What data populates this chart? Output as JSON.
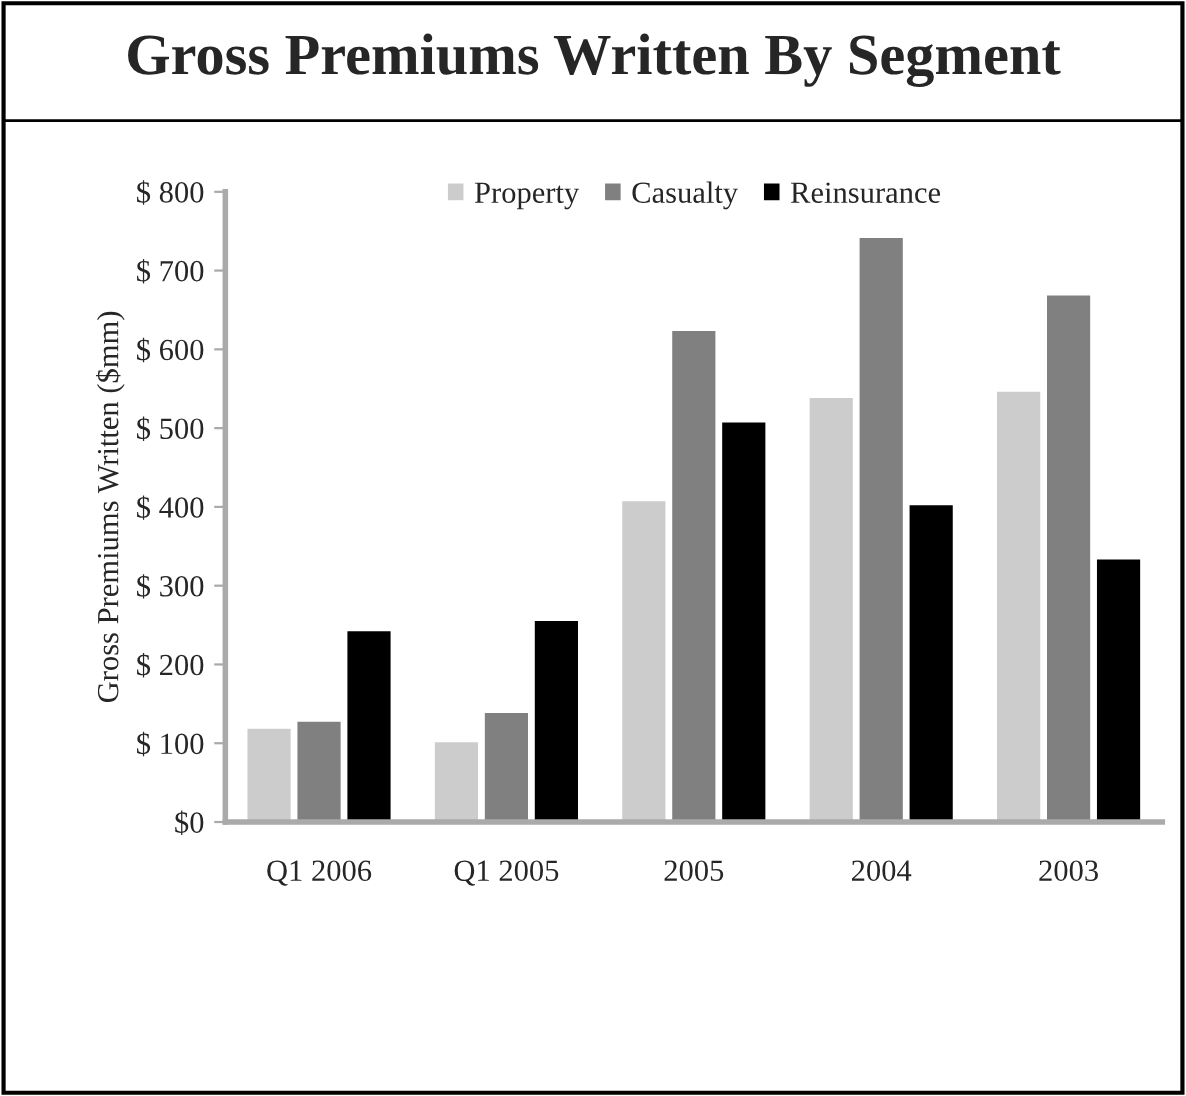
{
  "chart_data": {
    "type": "bar",
    "title": "Gross Premiums Written By Segment",
    "ylabel": "Gross Premiums Written ($mm)",
    "categories": [
      "Q1 2006",
      "Q1 2005",
      "2005",
      "2004",
      "2003"
    ],
    "series": [
      {
        "name": "Property",
        "color": "#cccccc",
        "values": [
          120,
          103,
          409,
          540,
          548
        ]
      },
      {
        "name": "Casualty",
        "color": "#808080",
        "values": [
          129,
          140,
          625,
          743,
          670
        ]
      },
      {
        "name": "Reinsurance",
        "color": "#000000",
        "values": [
          244,
          257,
          509,
          404,
          335
        ]
      }
    ],
    "ylim": [
      0,
      800
    ],
    "yticks": [
      {
        "value": 0,
        "label": "$0"
      },
      {
        "value": 100,
        "label": "$ 100"
      },
      {
        "value": 200,
        "label": "$ 200"
      },
      {
        "value": 300,
        "label": "$ 300"
      },
      {
        "value": 400,
        "label": "$ 400"
      },
      {
        "value": 500,
        "label": "$ 500"
      },
      {
        "value": 600,
        "label": "$ 600"
      },
      {
        "value": 700,
        "label": "$ 700"
      },
      {
        "value": 800,
        "label": "$ 800"
      }
    ],
    "legend": "top",
    "grid": false
  }
}
